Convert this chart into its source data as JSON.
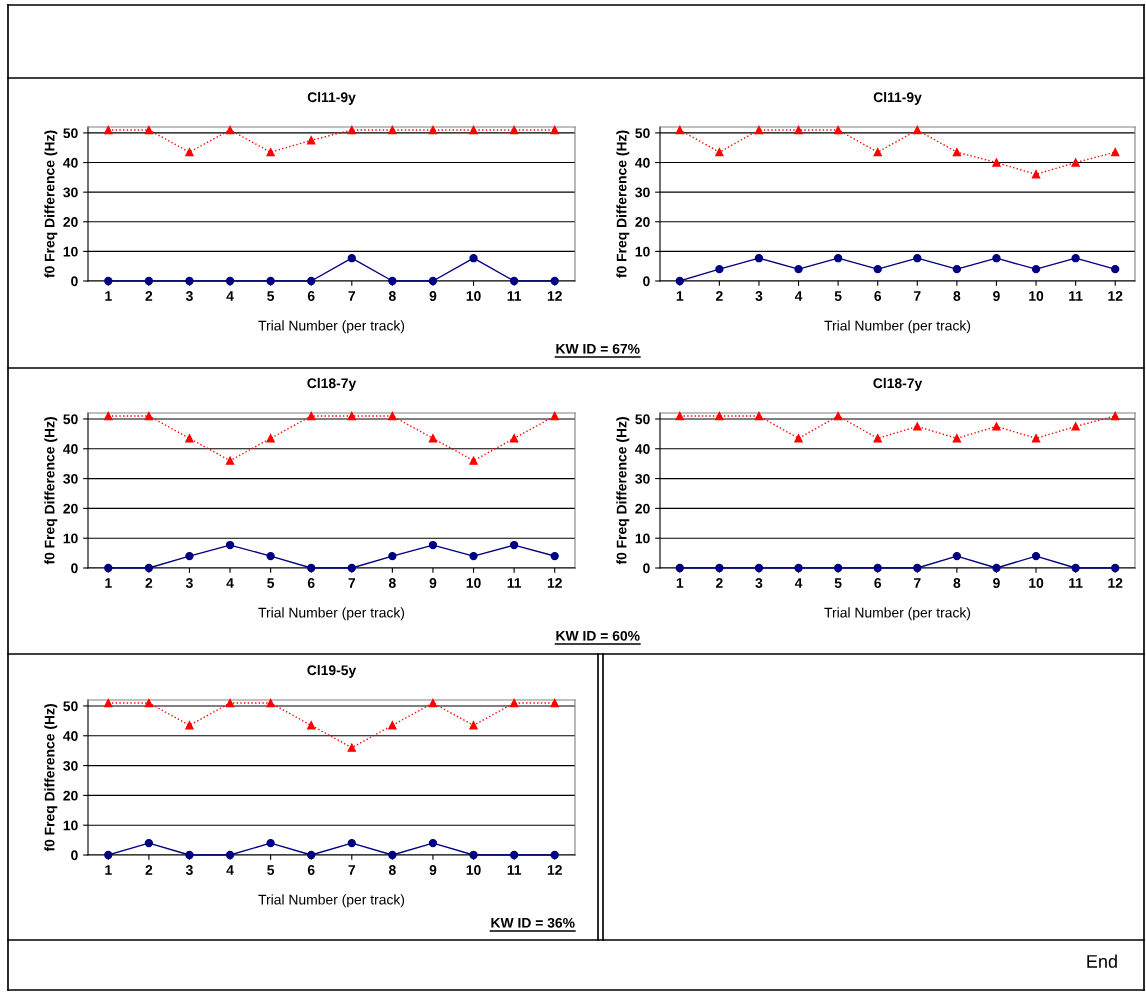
{
  "chart_data": [
    {
      "type": "line",
      "title": "Cl11-9y",
      "xlabel": "Trial Number (per track)",
      "ylabel": "f0 Freq Difference (Hz)",
      "categories": [
        "1",
        "2",
        "3",
        "4",
        "5",
        "6",
        "7",
        "8",
        "9",
        "10",
        "11",
        "12"
      ],
      "ylim": [
        0,
        52
      ],
      "yticks": [
        0,
        10,
        20,
        30,
        40,
        50
      ],
      "grid": "y",
      "series": [
        {
          "color": "#ff0000",
          "marker": "triangle",
          "line_style": "dotted",
          "values": [
            51,
            51,
            43.5,
            51,
            43.5,
            47.5,
            51,
            51,
            51,
            51,
            51,
            51
          ]
        },
        {
          "color": "#000080",
          "marker": "circle",
          "line_style": "solid",
          "values": [
            0,
            0,
            0,
            0,
            0,
            0,
            7.7,
            0,
            0,
            7.7,
            0,
            0
          ]
        }
      ]
    },
    {
      "type": "line",
      "title": "Cl11-9y",
      "xlabel": "Trial Number (per track)",
      "ylabel": "f0 Freq Difference (Hz)",
      "categories": [
        "1",
        "2",
        "3",
        "4",
        "5",
        "6",
        "7",
        "8",
        "9",
        "10",
        "11",
        "12"
      ],
      "ylim": [
        0,
        52
      ],
      "yticks": [
        0,
        10,
        20,
        30,
        40,
        50
      ],
      "grid": "y",
      "annotations": [
        "KW ID = 67%"
      ],
      "series": [
        {
          "color": "#ff0000",
          "marker": "triangle",
          "line_style": "dotted",
          "values": [
            51,
            43.5,
            51,
            51,
            51,
            43.5,
            51,
            43.5,
            40,
            36,
            40,
            43.5
          ]
        },
        {
          "color": "#000080",
          "marker": "circle",
          "line_style": "solid",
          "values": [
            0,
            4,
            7.7,
            4,
            7.7,
            4,
            7.7,
            4,
            7.7,
            4,
            7.7,
            4
          ]
        }
      ]
    },
    {
      "type": "line",
      "title": "Cl18-7y",
      "xlabel": "Trial Number (per track)",
      "ylabel": "f0 Freq Difference (Hz)",
      "categories": [
        "1",
        "2",
        "3",
        "4",
        "5",
        "6",
        "7",
        "8",
        "9",
        "10",
        "11",
        "12"
      ],
      "ylim": [
        0,
        52
      ],
      "yticks": [
        0,
        10,
        20,
        30,
        40,
        50
      ],
      "grid": "y",
      "series": [
        {
          "color": "#ff0000",
          "marker": "triangle",
          "line_style": "dotted",
          "values": [
            51,
            51,
            43.5,
            36,
            43.5,
            51,
            51,
            51,
            43.5,
            36,
            43.5,
            51
          ]
        },
        {
          "color": "#000080",
          "marker": "circle",
          "line_style": "solid",
          "values": [
            0,
            0,
            4,
            7.7,
            4,
            0,
            0,
            4,
            7.7,
            4,
            7.7,
            4
          ]
        }
      ]
    },
    {
      "type": "line",
      "title": "Cl18-7y",
      "xlabel": "Trial Number (per track)",
      "ylabel": "f0 Freq Difference (Hz)",
      "categories": [
        "1",
        "2",
        "3",
        "4",
        "5",
        "6",
        "7",
        "8",
        "9",
        "10",
        "11",
        "12"
      ],
      "ylim": [
        0,
        52
      ],
      "yticks": [
        0,
        10,
        20,
        30,
        40,
        50
      ],
      "grid": "y",
      "annotations": [
        "KW ID = 60%"
      ],
      "series": [
        {
          "color": "#ff0000",
          "marker": "triangle",
          "line_style": "dotted",
          "values": [
            51,
            51,
            51,
            43.5,
            51,
            43.5,
            47.5,
            43.5,
            47.5,
            43.5,
            47.5,
            51
          ]
        },
        {
          "color": "#000080",
          "marker": "circle",
          "line_style": "solid",
          "values": [
            0,
            0,
            0,
            0,
            0,
            0,
            0,
            4,
            0,
            4,
            0,
            0
          ]
        }
      ]
    },
    {
      "type": "line",
      "title": "Cl19-5y",
      "xlabel": "Trial Number (per track)",
      "ylabel": "f0 Freq Difference (Hz)",
      "categories": [
        "1",
        "2",
        "3",
        "4",
        "5",
        "6",
        "7",
        "8",
        "9",
        "10",
        "11",
        "12"
      ],
      "ylim": [
        0,
        52
      ],
      "yticks": [
        0,
        10,
        20,
        30,
        40,
        50
      ],
      "grid": "y",
      "annotations": [
        "KW ID = 36%",
        "End"
      ],
      "series": [
        {
          "color": "#ff0000",
          "marker": "triangle",
          "line_style": "dotted",
          "values": [
            51,
            51,
            43.5,
            51,
            51,
            43.5,
            36,
            43.5,
            51,
            43.5,
            51,
            51
          ]
        },
        {
          "color": "#000080",
          "marker": "circle",
          "line_style": "solid",
          "values": [
            0,
            4,
            0,
            0,
            4,
            0,
            4,
            0,
            4,
            0,
            0,
            0
          ]
        }
      ]
    }
  ]
}
